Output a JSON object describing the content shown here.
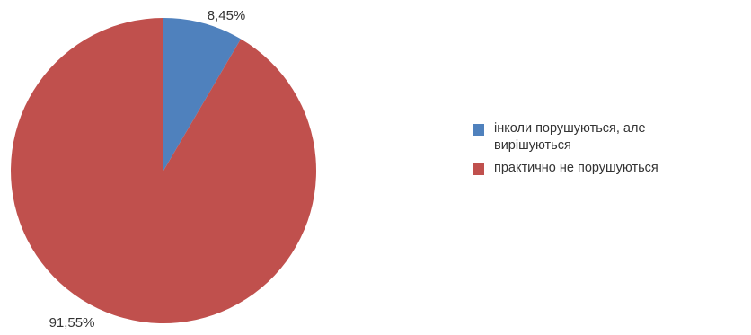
{
  "chart_data": {
    "type": "pie",
    "categories": [
      "інколи порушуються, але вирішуються",
      "практично не порушуються"
    ],
    "values": [
      8.45,
      91.55
    ],
    "data_labels": [
      "8,45%",
      "91,55%"
    ],
    "colors": [
      "#4f81bd",
      "#c0504d"
    ],
    "legend_position": "right",
    "start_angle": "12 o'clock, clockwise"
  }
}
